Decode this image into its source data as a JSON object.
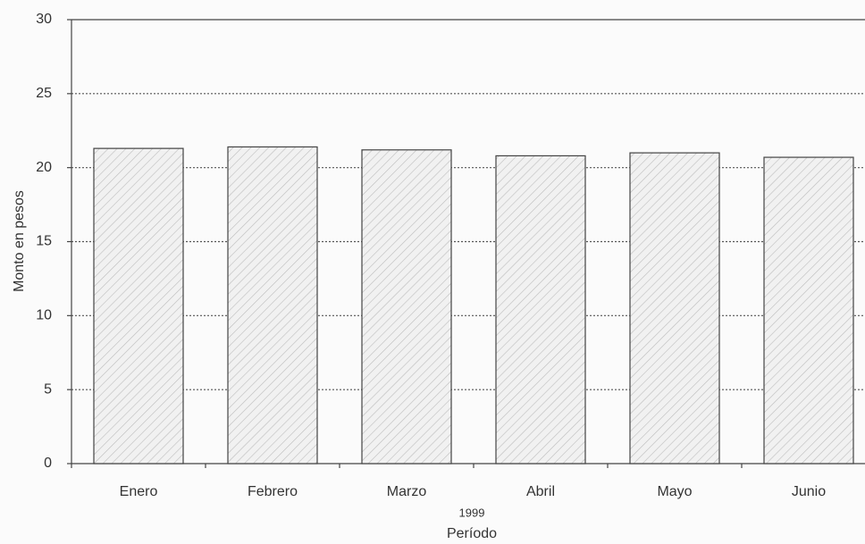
{
  "chart_data": {
    "type": "bar",
    "categories": [
      "Enero",
      "Febrero",
      "Marzo",
      "Abril",
      "Mayo",
      "Junio"
    ],
    "values": [
      21.3,
      21.4,
      21.2,
      20.8,
      21.0,
      20.7
    ],
    "color": "#e6e6e6",
    "ylabel": "Monto en pesos",
    "xlabel_year": "1999",
    "xlabel": "Período",
    "ylim": [
      0,
      30
    ],
    "yticks": [
      0,
      5,
      10,
      15,
      20,
      25,
      30
    ],
    "grid": true
  }
}
